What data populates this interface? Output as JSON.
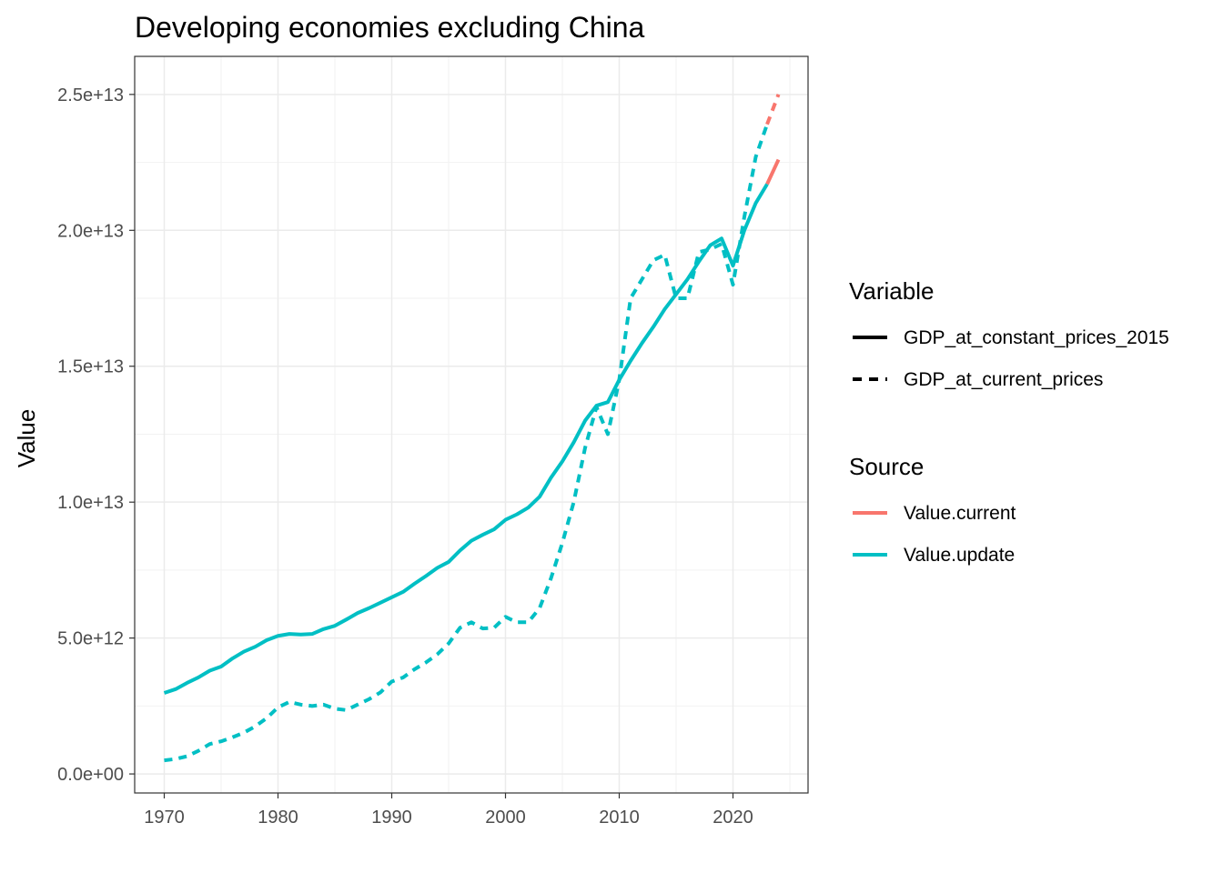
{
  "chart_data": {
    "type": "line",
    "title": "Developing economies excluding China",
    "xlabel": "",
    "ylabel": "Value",
    "xlim": [
      1967.4,
      2026.6
    ],
    "ylim": [
      -700000000000.0,
      26400000000000.0
    ],
    "x_ticks": [
      1970,
      1980,
      1990,
      2000,
      2010,
      2020
    ],
    "x_tick_labels": [
      "1970",
      "1980",
      "1990",
      "2000",
      "2010",
      "2020"
    ],
    "y_ticks": [
      0,
      5000000000000.0,
      10000000000000.0,
      15000000000000.0,
      20000000000000.0,
      25000000000000.0
    ],
    "y_tick_labels": [
      "0.0e+00",
      "5.0e+12",
      "1.0e+13",
      "1.5e+13",
      "2.0e+13",
      "2.5e+13"
    ],
    "grid": true,
    "colors": {
      "Value.current": "#F8766D",
      "Value.update": "#00BFC4"
    },
    "legend": {
      "placement": "right",
      "variable_title": "Variable",
      "variable_entries": [
        {
          "label": "GDP_at_constant_prices_2015",
          "linetype": "solid"
        },
        {
          "label": "GDP_at_current_prices",
          "linetype": "dashed"
        }
      ],
      "source_title": "Source",
      "source_entries": [
        {
          "label": "Value.current",
          "color": "#F8766D"
        },
        {
          "label": "Value.update",
          "color": "#00BFC4"
        }
      ]
    },
    "series": [
      {
        "variable": "GDP_at_constant_prices_2015",
        "source": "Value.current",
        "x": [
          2023,
          2024
        ],
        "values": [
          21700000000000.0,
          22600000000000.0
        ]
      },
      {
        "variable": "GDP_at_current_prices",
        "source": "Value.current",
        "x": [
          2023,
          2024
        ],
        "values": [
          23900000000000.0,
          25000000000000.0
        ]
      },
      {
        "variable": "GDP_at_constant_prices_2015",
        "source": "Value.update",
        "x": [
          1970,
          1971,
          1972,
          1973,
          1974,
          1975,
          1976,
          1977,
          1978,
          1979,
          1980,
          1981,
          1982,
          1983,
          1984,
          1985,
          1986,
          1987,
          1988,
          1989,
          1990,
          1991,
          1992,
          1993,
          1994,
          1995,
          1996,
          1997,
          1998,
          1999,
          2000,
          2001,
          2002,
          2003,
          2004,
          2005,
          2006,
          2007,
          2008,
          2009,
          2010,
          2011,
          2012,
          2013,
          2014,
          2015,
          2016,
          2017,
          2018,
          2019,
          2020,
          2021,
          2022,
          2023
        ],
        "values": [
          2980000000000.0,
          3120000000000.0,
          3350000000000.0,
          3550000000000.0,
          3800000000000.0,
          3950000000000.0,
          4250000000000.0,
          4500000000000.0,
          4680000000000.0,
          4920000000000.0,
          5080000000000.0,
          5150000000000.0,
          5130000000000.0,
          5150000000000.0,
          5330000000000.0,
          5450000000000.0,
          5680000000000.0,
          5920000000000.0,
          6100000000000.0,
          6300000000000.0,
          6500000000000.0,
          6700000000000.0,
          7000000000000.0,
          7280000000000.0,
          7580000000000.0,
          7800000000000.0,
          8220000000000.0,
          8580000000000.0,
          8800000000000.0,
          9000000000000.0,
          9350000000000.0,
          9550000000000.0,
          9800000000000.0,
          10200000000000.0,
          10900000000000.0,
          11500000000000.0,
          12200000000000.0,
          13000000000000.0,
          13550000000000.0,
          13680000000000.0,
          14500000000000.0,
          15200000000000.0,
          15850000000000.0,
          16450000000000.0,
          17100000000000.0,
          17650000000000.0,
          18200000000000.0,
          18850000000000.0,
          19450000000000.0,
          19700000000000.0,
          18700000000000.0,
          20000000000000.0,
          21000000000000.0,
          21700000000000.0
        ]
      },
      {
        "variable": "GDP_at_current_prices",
        "source": "Value.update",
        "x": [
          1970,
          1971,
          1972,
          1973,
          1974,
          1975,
          1976,
          1977,
          1978,
          1979,
          1980,
          1981,
          1982,
          1983,
          1984,
          1985,
          1986,
          1987,
          1988,
          1989,
          1990,
          1991,
          1992,
          1993,
          1994,
          1995,
          1996,
          1997,
          1998,
          1999,
          2000,
          2001,
          2002,
          2003,
          2004,
          2005,
          2006,
          2007,
          2008,
          2009,
          2010,
          2011,
          2012,
          2013,
          2014,
          2015,
          2016,
          2017,
          2018,
          2019,
          2020,
          2021,
          2022,
          2023
        ],
        "values": [
          500000000000.0,
          550000000000.0,
          650000000000.0,
          850000000000.0,
          1100000000000.0,
          1200000000000.0,
          1350000000000.0,
          1520000000000.0,
          1750000000000.0,
          2050000000000.0,
          2450000000000.0,
          2650000000000.0,
          2550000000000.0,
          2500000000000.0,
          2550000000000.0,
          2400000000000.0,
          2350000000000.0,
          2550000000000.0,
          2750000000000.0,
          3000000000000.0,
          3400000000000.0,
          3550000000000.0,
          3850000000000.0,
          4100000000000.0,
          4400000000000.0,
          4800000000000.0,
          5380000000000.0,
          5580000000000.0,
          5350000000000.0,
          5380000000000.0,
          5780000000000.0,
          5580000000000.0,
          5580000000000.0,
          6100000000000.0,
          7200000000000.0,
          8500000000000.0,
          10000000000000.0,
          12000000000000.0,
          13500000000000.0,
          12500000000000.0,
          14500000000000.0,
          17500000000000.0,
          18200000000000.0,
          18900000000000.0,
          19100000000000.0,
          17500000000000.0,
          17500000000000.0,
          19200000000000.0,
          19300000000000.0,
          19500000000000.0,
          18000000000000.0,
          20500000000000.0,
          22700000000000.0,
          23900000000000.0
        ]
      }
    ]
  }
}
